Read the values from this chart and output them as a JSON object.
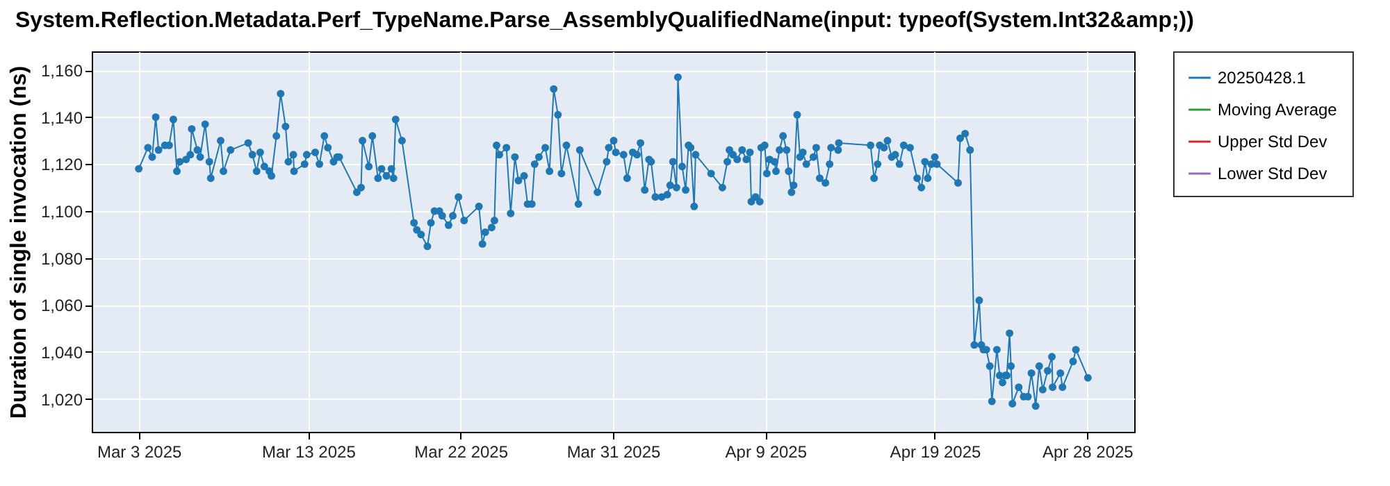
{
  "chart_data": {
    "type": "line",
    "title": "System.Reflection.Metadata.Perf_TypeName.Parse_AssemblyQualifiedName(input: typeof(System.Int32&amp;))",
    "ylabel": "Duration of single invocation (ns)",
    "xlim": [
      "2025-02-28T05:20",
      "2025-04-30T18:40"
    ],
    "xticks": [
      {
        "value": "2025-03-03",
        "label": "Mar 3 2025"
      },
      {
        "value": "2025-03-13",
        "label": "Mar 13 2025"
      },
      {
        "value": "2025-03-22",
        "label": "Mar 22 2025"
      },
      {
        "value": "2025-03-31",
        "label": "Mar 31 2025"
      },
      {
        "value": "2025-04-09",
        "label": "Apr 9 2025"
      },
      {
        "value": "2025-04-19",
        "label": "Apr 19 2025"
      },
      {
        "value": "2025-04-28",
        "label": "Apr 28 2025"
      }
    ],
    "ylim": [
      1006,
      1168
    ],
    "yticks": [
      {
        "value": 1020,
        "label": "1,020"
      },
      {
        "value": 1040,
        "label": "1,040"
      },
      {
        "value": 1060,
        "label": "1,060"
      },
      {
        "value": 1080,
        "label": "1,080"
      },
      {
        "value": 1100,
        "label": "1,100"
      },
      {
        "value": 1120,
        "label": "1,120"
      },
      {
        "value": 1140,
        "label": "1,140"
      },
      {
        "value": 1160,
        "label": "1,160"
      }
    ],
    "grid": true,
    "legend": "right",
    "marker": "circle",
    "x": [
      "2025-03-03T00:00",
      "2025-03-03T13:00",
      "2025-03-03T19:00",
      "2025-03-04T00:00",
      "2025-03-04T04:00",
      "2025-03-04T13:00",
      "2025-03-04T19:00",
      "2025-03-05T01:00",
      "2025-03-05T06:00",
      "2025-03-05T10:00",
      "2025-03-05T19:00",
      "2025-03-06T01:00",
      "2025-03-06T03:00",
      "2025-03-06T11:00",
      "2025-03-06T15:00",
      "2025-03-06T22:00",
      "2025-03-07T04:00",
      "2025-03-07T06:00",
      "2025-03-07T20:00",
      "2025-03-08T00:00",
      "2025-03-08T10:00",
      "2025-03-09T11:00",
      "2025-03-09T17:00",
      "2025-03-09T23:00",
      "2025-03-10T04:00",
      "2025-03-10T10:00",
      "2025-03-10T17:00",
      "2025-03-10T20:00",
      "2025-03-11T03:00",
      "2025-03-11T09:00",
      "2025-03-11T16:00",
      "2025-03-11T20:00",
      "2025-03-12T03:00",
      "2025-03-12T04:00",
      "2025-03-12T19:00",
      "2025-03-12T22:00",
      "2025-03-13T10:00",
      "2025-03-13T16:00",
      "2025-03-13T23:00",
      "2025-03-14T04:00",
      "2025-03-14T12:00",
      "2025-03-14T17:00",
      "2025-03-14T20:00",
      "2025-03-15T21:00",
      "2025-03-16T03:00",
      "2025-03-16T05:00",
      "2025-03-16T14:00",
      "2025-03-16T19:00",
      "2025-03-17T03:00",
      "2025-03-17T08:00",
      "2025-03-17T15:00",
      "2025-03-17T22:00",
      "2025-03-18T01:00",
      "2025-03-18T04:00",
      "2025-03-18T13:00",
      "2025-03-19T06:00",
      "2025-03-19T10:00",
      "2025-03-19T16:00",
      "2025-03-20T01:00",
      "2025-03-20T06:00",
      "2025-03-20T11:00",
      "2025-03-20T18:00",
      "2025-03-20T22:00",
      "2025-03-21T07:00",
      "2025-03-21T13:00",
      "2025-03-21T21:00",
      "2025-03-22T05:00",
      "2025-03-23T02:00",
      "2025-03-23T07:00",
      "2025-03-23T11:00",
      "2025-03-23T20:00",
      "2025-03-24T00:00",
      "2025-03-24T03:00",
      "2025-03-24T07:00",
      "2025-03-24T17:00",
      "2025-03-24T23:00",
      "2025-03-25T05:00",
      "2025-03-25T10:00",
      "2025-03-25T18:00",
      "2025-03-25T23:00",
      "2025-03-26T05:00",
      "2025-03-26T09:00",
      "2025-03-26T15:00",
      "2025-03-27T00:00",
      "2025-03-27T06:00",
      "2025-03-27T12:00",
      "2025-03-27T18:00",
      "2025-03-27T23:00",
      "2025-03-28T06:00",
      "2025-03-28T23:00",
      "2025-03-29T01:00",
      "2025-03-30T02:00",
      "2025-03-30T15:00",
      "2025-03-30T18:00",
      "2025-03-31T01:00",
      "2025-03-31T04:00",
      "2025-03-31T15:00",
      "2025-03-31T20:00",
      "2025-04-01T04:00",
      "2025-04-01T10:00",
      "2025-04-01T15:00",
      "2025-04-01T21:00",
      "2025-04-02T03:00",
      "2025-04-02T06:00",
      "2025-04-02T12:00",
      "2025-04-02T21:00",
      "2025-04-03T05:00",
      "2025-04-03T09:00",
      "2025-04-03T13:00",
      "2025-04-03T18:00",
      "2025-04-03T20:00",
      "2025-04-04T02:00",
      "2025-04-04T07:00",
      "2025-04-04T11:00",
      "2025-04-04T14:00",
      "2025-04-04T19:00",
      "2025-04-04T21:00",
      "2025-04-05T19:00",
      "2025-04-06T11:00",
      "2025-04-06T18:00",
      "2025-04-06T21:00",
      "2025-04-07T02:00",
      "2025-04-07T08:00",
      "2025-04-07T15:00",
      "2025-04-07T21:00",
      "2025-04-08T02:00",
      "2025-04-08T04:00",
      "2025-04-08T10:00",
      "2025-04-08T16:00",
      "2025-04-08T18:00",
      "2025-04-08T23:00",
      "2025-04-09T02:00",
      "2025-04-09T06:00",
      "2025-04-09T13:00",
      "2025-04-09T15:00",
      "2025-04-09T20:00",
      "2025-04-10T01:00",
      "2025-04-10T06:00",
      "2025-04-10T09:00",
      "2025-04-10T13:00",
      "2025-04-10T16:00",
      "2025-04-10T21:00",
      "2025-04-11T01:00",
      "2025-04-11T05:00",
      "2025-04-11T10:00",
      "2025-04-11T20:00",
      "2025-04-12T00:00",
      "2025-04-12T05:00",
      "2025-04-12T13:00",
      "2025-04-12T19:00",
      "2025-04-12T21:00",
      "2025-04-13T07:00",
      "2025-04-13T08:00",
      "2025-04-15T05:00",
      "2025-04-15T10:00",
      "2025-04-15T15:00",
      "2025-04-15T18:00",
      "2025-04-16T00:00",
      "2025-04-16T05:00",
      "2025-04-16T11:00",
      "2025-04-16T16:00",
      "2025-04-16T22:00",
      "2025-04-17T04:00",
      "2025-04-17T13:00",
      "2025-04-17T23:00",
      "2025-04-18T05:00",
      "2025-04-18T10:00",
      "2025-04-18T14:00",
      "2025-04-18T19:00",
      "2025-04-19T00:00",
      "2025-04-19T03:00",
      "2025-04-20T09:00",
      "2025-04-20T12:00",
      "2025-04-20T19:00",
      "2025-04-21T02:00",
      "2025-04-21T08:00",
      "2025-04-21T15:00",
      "2025-04-21T18:00",
      "2025-04-21T21:00",
      "2025-04-22T01:00",
      "2025-04-22T06:00",
      "2025-04-22T09:00",
      "2025-04-22T16:00",
      "2025-04-22T20:00",
      "2025-04-23T00:00",
      "2025-04-23T04:00",
      "2025-04-23T06:00",
      "2025-04-23T10:00",
      "2025-04-23T12:00",
      "2025-04-23T14:00",
      "2025-04-23T23:00",
      "2025-04-24T06:00",
      "2025-04-24T12:00",
      "2025-04-24T17:00",
      "2025-04-24T23:00",
      "2025-04-25T04:00",
      "2025-04-25T09:00",
      "2025-04-25T16:00",
      "2025-04-25T22:00",
      "2025-04-25T23:00",
      "2025-04-26T10:00",
      "2025-04-26T13:00",
      "2025-04-27T04:00",
      "2025-04-27T08:00",
      "2025-04-28T01:00"
    ],
    "series": [
      {
        "name": "20250428.1",
        "color": "#1f77b4",
        "values": [
          1118,
          1127,
          1123,
          1140,
          1126,
          1128,
          1128,
          1139,
          1117,
          1121,
          1122,
          1124,
          1135,
          1126,
          1123,
          1137,
          1121,
          1114,
          1130,
          1117,
          1126,
          1129,
          1124,
          1117,
          1125,
          1119,
          1117,
          1115,
          1132,
          1150,
          1136,
          1121,
          1124,
          1117,
          1120,
          1124,
          1125,
          1120,
          1132,
          1127,
          1121,
          1123,
          1123,
          1108,
          1110,
          1130,
          1119,
          1132,
          1114,
          1118,
          1115,
          1118,
          1114,
          1139,
          1130,
          1095,
          1092,
          1090,
          1085,
          1095,
          1100,
          1100,
          1098,
          1094,
          1098,
          1106,
          1096,
          1102,
          1086,
          1091,
          1093,
          1096,
          1128,
          1124,
          1127,
          1099,
          1123,
          1113,
          1115,
          1103,
          1103,
          1120,
          1123,
          1127,
          1117,
          1152,
          1141,
          1116,
          1128,
          1103,
          1126,
          1108,
          1121,
          1127,
          1130,
          1125,
          1124,
          1114,
          1125,
          1124,
          1129,
          1109,
          1122,
          1121,
          1106,
          1106,
          1107,
          1111,
          1121,
          1110,
          1157,
          1119,
          1109,
          1128,
          1127,
          1102,
          1124,
          1116,
          1110,
          1121,
          1126,
          1124,
          1122,
          1126,
          1122,
          1125,
          1104,
          1106,
          1104,
          1127,
          1128,
          1116,
          1122,
          1121,
          1117,
          1126,
          1132,
          1126,
          1117,
          1108,
          1111,
          1141,
          1123,
          1125,
          1120,
          1123,
          1127,
          1114,
          1112,
          1120,
          1127,
          1126,
          1129,
          1128,
          1114,
          1120,
          1128,
          1127,
          1130,
          1123,
          1124,
          1120,
          1128,
          1127,
          1114,
          1110,
          1121,
          1114,
          1120,
          1123,
          1120,
          1112,
          1131,
          1133,
          1126,
          1043,
          1062,
          1043,
          1041,
          1041,
          1034,
          1019,
          1041,
          1030,
          1027,
          1030,
          1030,
          1048,
          1034,
          1018,
          1025,
          1021,
          1021,
          1031,
          1017,
          1034,
          1024,
          1032,
          1038,
          1025,
          1031,
          1025,
          1036,
          1041,
          1029
        ]
      },
      {
        "name": "Moving Average",
        "color": "#2ca02c",
        "values": [
          null,
          null,
          null,
          null,
          null,
          null,
          null,
          null,
          null,
          null,
          null,
          null,
          null,
          null,
          null,
          null,
          null,
          null,
          null,
          null,
          null,
          null,
          null,
          null,
          null,
          null,
          null,
          null,
          null,
          null,
          null,
          null,
          null,
          null,
          null,
          null,
          null,
          null,
          null,
          null,
          null,
          null,
          null,
          null,
          null,
          null,
          null,
          null,
          null,
          null,
          null,
          null,
          null,
          null,
          null,
          null,
          null,
          null,
          null,
          null,
          null,
          null,
          null,
          null,
          null,
          null,
          null,
          null,
          null,
          null,
          null,
          null,
          null,
          null,
          null,
          null,
          null,
          null,
          null,
          null,
          null,
          null,
          null,
          null,
          null,
          null,
          null,
          null,
          null,
          null,
          null,
          null,
          null,
          null,
          null,
          null,
          null,
          null,
          null,
          null,
          null,
          null,
          null,
          null,
          null,
          null,
          null,
          null,
          null,
          null,
          null,
          null,
          null,
          null,
          null,
          null,
          null,
          null,
          null,
          null,
          null,
          null,
          null,
          null,
          null,
          null,
          null,
          null,
          null,
          null,
          null,
          null,
          null,
          null,
          null,
          null,
          null,
          null,
          null,
          null,
          null,
          null,
          null,
          null,
          null,
          null,
          null,
          null,
          null,
          null,
          null,
          null,
          null,
          null,
          null,
          null,
          null,
          null,
          null,
          null,
          null,
          null,
          null,
          null,
          null,
          null,
          null,
          null,
          null,
          null,
          null,
          null,
          null,
          null,
          null,
          null,
          null,
          null,
          null,
          null,
          null,
          null,
          null,
          null,
          null,
          null,
          null,
          null,
          null,
          null,
          null,
          null,
          null,
          null,
          null,
          null,
          null,
          null,
          null,
          null,
          null,
          null,
          null,
          null,
          null
        ]
      },
      {
        "name": "Upper Std Dev",
        "color": "#d62728",
        "values": [
          null,
          null,
          null,
          null,
          null,
          null,
          null,
          null,
          null,
          null,
          null,
          null,
          null,
          null,
          null,
          null,
          null,
          null,
          null,
          null,
          null,
          null,
          null,
          null,
          null,
          null,
          null,
          null,
          null,
          null,
          null,
          null,
          null,
          null,
          null,
          null,
          null,
          null,
          null,
          null,
          null,
          null,
          null,
          null,
          null,
          null,
          null,
          null,
          null,
          null,
          null,
          null,
          null,
          null,
          null,
          null,
          null,
          null,
          null,
          null,
          null,
          null,
          null,
          null,
          null,
          null,
          null,
          null,
          null,
          null,
          null,
          null,
          null,
          null,
          null,
          null,
          null,
          null,
          null,
          null,
          null,
          null,
          null,
          null,
          null,
          null,
          null,
          null,
          null,
          null,
          null,
          null,
          null,
          null,
          null,
          null,
          null,
          null,
          null,
          null,
          null,
          null,
          null,
          null,
          null,
          null,
          null,
          null,
          null,
          null,
          null,
          null,
          null,
          null,
          null,
          null,
          null,
          null,
          null,
          null,
          null,
          null,
          null,
          null,
          null,
          null,
          null,
          null,
          null,
          null,
          null,
          null,
          null,
          null,
          null,
          null,
          null,
          null,
          null,
          null,
          null,
          null,
          null,
          null,
          null,
          null,
          null,
          null,
          null,
          null,
          null,
          null,
          null,
          null,
          null,
          null,
          null,
          null,
          null,
          null,
          null,
          null,
          null,
          null,
          null,
          null,
          null,
          null,
          null,
          null,
          null,
          null,
          null,
          null,
          null,
          null,
          null,
          null,
          null,
          null,
          null,
          null,
          null,
          null,
          null,
          null,
          null,
          null,
          null,
          null,
          null,
          null,
          null,
          null,
          null,
          null,
          null,
          null,
          null,
          null,
          null,
          null,
          null,
          null,
          null
        ]
      },
      {
        "name": "Lower Std Dev",
        "color": "#9467bd",
        "values": [
          null,
          null,
          null,
          null,
          null,
          null,
          null,
          null,
          null,
          null,
          null,
          null,
          null,
          null,
          null,
          null,
          null,
          null,
          null,
          null,
          null,
          null,
          null,
          null,
          null,
          null,
          null,
          null,
          null,
          null,
          null,
          null,
          null,
          null,
          null,
          null,
          null,
          null,
          null,
          null,
          null,
          null,
          null,
          null,
          null,
          null,
          null,
          null,
          null,
          null,
          null,
          null,
          null,
          null,
          null,
          null,
          null,
          null,
          null,
          null,
          null,
          null,
          null,
          null,
          null,
          null,
          null,
          null,
          null,
          null,
          null,
          null,
          null,
          null,
          null,
          null,
          null,
          null,
          null,
          null,
          null,
          null,
          null,
          null,
          null,
          null,
          null,
          null,
          null,
          null,
          null,
          null,
          null,
          null,
          null,
          null,
          null,
          null,
          null,
          null,
          null,
          null,
          null,
          null,
          null,
          null,
          null,
          null,
          null,
          null,
          null,
          null,
          null,
          null,
          null,
          null,
          null,
          null,
          null,
          null,
          null,
          null,
          null,
          null,
          null,
          null,
          null,
          null,
          null,
          null,
          null,
          null,
          null,
          null,
          null,
          null,
          null,
          null,
          null,
          null,
          null,
          null,
          null,
          null,
          null,
          null,
          null,
          null,
          null,
          null,
          null,
          null,
          null,
          null,
          null,
          null,
          null,
          null,
          null,
          null,
          null,
          null,
          null,
          null,
          null,
          null,
          null,
          null,
          null,
          null,
          null,
          null,
          null,
          null,
          null,
          null,
          null,
          null,
          null,
          null,
          null,
          null,
          null,
          null,
          null,
          null,
          null,
          null,
          null,
          null,
          null,
          null,
          null,
          null,
          null,
          null,
          null,
          null,
          null,
          null,
          null,
          null,
          null,
          null,
          null
        ]
      }
    ]
  }
}
